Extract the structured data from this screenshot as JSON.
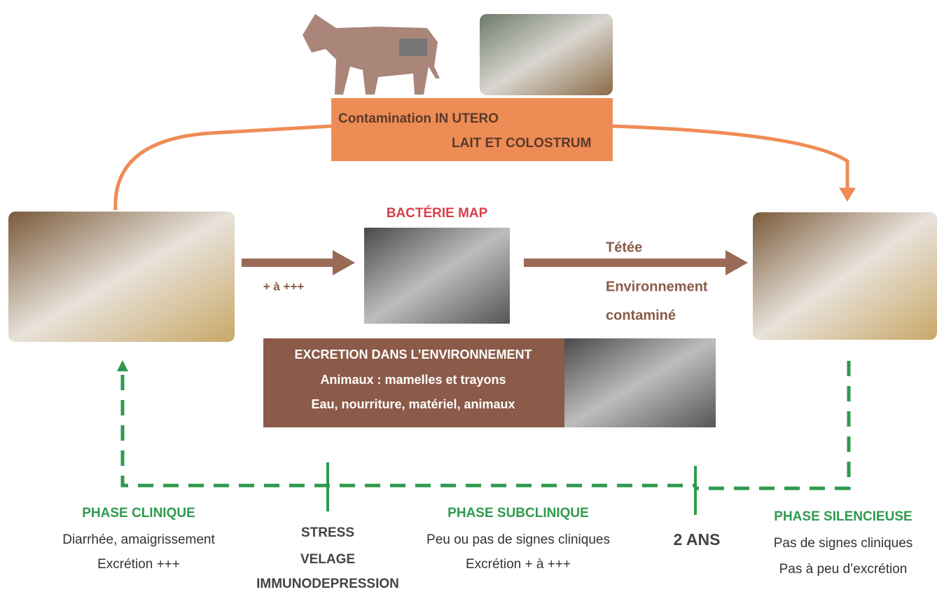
{
  "top_box": {
    "line1": "Contamination IN UTERO",
    "line2": "LAIT ET COLOSTRUM"
  },
  "bacteria": {
    "title": "BACTÉRIE MAP"
  },
  "arrow_left": {
    "label": "+ à +++"
  },
  "arrow_right": {
    "label1": "Tétée",
    "label2": "Environnement",
    "label3": "contaminé"
  },
  "excretion_box": {
    "title": "EXCRETION DANS L’ENVIRONNEMENT",
    "line1": "Animaux : mamelles et trayons",
    "line2": "Eau, nourriture, matériel, animaux"
  },
  "phases": [
    {
      "title": "PHASE CLINIQUE",
      "lines": [
        "Diarrhée, amaigrissement",
        "Excrétion +++"
      ]
    },
    {
      "title": "PHASE SUBCLINIQUE",
      "lines": [
        "Peu ou pas de signes cliniques",
        "Excrétion + à +++"
      ]
    },
    {
      "title": "PHASE SILENCIEUSE",
      "lines": [
        "Pas de signes cliniques",
        "Pas à peu d’excrétion"
      ]
    }
  ],
  "triggers": [
    "STRESS",
    "VELAGE",
    "IMMUNODEPRESSION"
  ],
  "age_marker": "2 ANS"
}
